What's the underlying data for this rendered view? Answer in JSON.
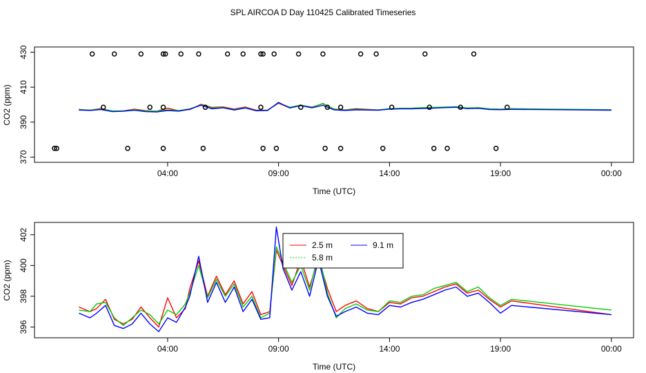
{
  "figure": {
    "title": "SPL AIRCOA D  Day 110425  Calibrated Timeseries"
  },
  "chart_data": [
    {
      "type": "line",
      "panel": "top",
      "xlabel": "Time (UTC)",
      "ylabel": "CO2 (ppm)",
      "xlim": [
        -2.0,
        25.0
      ],
      "ylim": [
        367.0,
        433.0
      ],
      "x_ticks": [
        4,
        9,
        14,
        19,
        24
      ],
      "x_tick_labels": [
        "04:00",
        "09:00",
        "14:00",
        "19:00",
        "00:00"
      ],
      "y_ticks": [
        370,
        390,
        410,
        430
      ],
      "y_tick_labels": [
        "370",
        "390",
        "410",
        "430"
      ],
      "series": [
        {
          "name": "2.5 m",
          "color": "#ff0000",
          "x": [
            0.0,
            0.5,
            1.0,
            1.5,
            2.0,
            2.5,
            3.0,
            3.5,
            4.0,
            4.5,
            5.0,
            5.5,
            6.0,
            6.5,
            7.0,
            7.5,
            8.0,
            8.5,
            9.0,
            9.5,
            10.0,
            10.5,
            11.0,
            11.5,
            12.0,
            12.5,
            13.0,
            13.5,
            14.0,
            14.5,
            15.0,
            15.5,
            16.0,
            16.5,
            17.0,
            17.5,
            18.0,
            18.5,
            19.0,
            19.5,
            24.0
          ],
          "y": [
            397.3,
            396.8,
            397.8,
            396.3,
            396.5,
            397.4,
            396.6,
            396.2,
            398.0,
            396.5,
            397.2,
            400.2,
            398.4,
            398.7,
            397.5,
            398.6,
            396.8,
            396.9,
            400.8,
            398.2,
            399.6,
            398.6,
            400.5,
            397.5,
            397.0,
            397.7,
            397.3,
            397.0,
            397.6,
            397.9,
            397.9,
            398.2,
            398.2,
            398.5,
            398.7,
            398.0,
            398.2,
            397.6,
            397.4,
            397.6,
            396.9
          ]
        },
        {
          "name": "5.8 m",
          "color": "#00cc00",
          "x": [
            0.0,
            0.5,
            1.0,
            1.5,
            2.0,
            2.5,
            3.0,
            3.5,
            4.0,
            4.5,
            5.0,
            5.5,
            6.0,
            6.5,
            7.0,
            7.5,
            8.0,
            8.5,
            9.0,
            9.5,
            10.0,
            10.5,
            11.0,
            11.5,
            12.0,
            12.5,
            13.0,
            13.5,
            14.0,
            14.5,
            15.0,
            15.5,
            16.0,
            16.5,
            17.0,
            17.5,
            18.0,
            18.5,
            19.0,
            19.5,
            24.0
          ],
          "y": [
            397.2,
            396.9,
            397.5,
            396.5,
            396.4,
            397.1,
            396.4,
            396.3,
            397.0,
            396.6,
            397.6,
            399.9,
            398.1,
            398.4,
            397.2,
            398.3,
            396.6,
            396.8,
            401.0,
            398.5,
            399.8,
            398.4,
            400.7,
            397.4,
            396.9,
            397.4,
            397.1,
            397.0,
            397.7,
            397.9,
            398.0,
            398.3,
            398.4,
            398.6,
            398.8,
            398.1,
            398.3,
            397.6,
            397.4,
            397.7,
            397.1
          ]
        },
        {
          "name": "9.1 m",
          "color": "#0000ff",
          "x": [
            0.0,
            0.5,
            1.0,
            1.5,
            2.0,
            2.5,
            3.0,
            3.5,
            4.0,
            4.5,
            5.0,
            5.5,
            6.0,
            6.5,
            7.0,
            7.5,
            8.0,
            8.5,
            9.0,
            9.5,
            10.0,
            10.5,
            11.0,
            11.5,
            12.0,
            12.5,
            13.0,
            13.5,
            14.0,
            14.5,
            15.0,
            15.5,
            16.0,
            16.5,
            17.0,
            17.5,
            18.0,
            18.5,
            19.0,
            19.5,
            24.0
          ],
          "y": [
            396.9,
            396.7,
            397.2,
            396.0,
            396.2,
            396.8,
            396.0,
            395.8,
            396.6,
            396.3,
            397.4,
            399.7,
            397.6,
            398.2,
            396.9,
            398.1,
            396.5,
            396.6,
            401.3,
            398.1,
            399.4,
            398.2,
            399.6,
            397.0,
            396.7,
            397.0,
            396.9,
            396.8,
            397.4,
            397.6,
            397.6,
            397.8,
            398.0,
            398.3,
            398.5,
            397.7,
            397.9,
            397.2,
            397.1,
            397.3,
            396.8
          ]
        }
      ],
      "points": {
        "x": [
          -1.0,
          0.6,
          1.6,
          2.8,
          3.8,
          3.9,
          4.6,
          5.4,
          6.7,
          7.4,
          8.2,
          8.3,
          8.8,
          9.9,
          11.0,
          12.7,
          13.4,
          15.6,
          17.8,
          1.1,
          3.2,
          3.8,
          5.7,
          8.2,
          10.0,
          11.2,
          11.8,
          14.1,
          15.8,
          17.2,
          19.3,
          -1.1,
          2.2,
          3.8,
          5.6,
          8.3,
          8.9,
          11.1,
          11.8,
          13.7,
          16.0,
          16.6,
          18.8
        ],
        "y": [
          375.0,
          429.0,
          429.0,
          429.0,
          429.0,
          429.0,
          429.0,
          429.0,
          429.0,
          429.0,
          429.0,
          429.0,
          429.0,
          429.0,
          429.0,
          429.0,
          429.0,
          429.0,
          429.0,
          398.5,
          398.5,
          398.5,
          398.5,
          398.5,
          398.5,
          398.5,
          398.5,
          398.5,
          398.5,
          398.5,
          398.5,
          375.0,
          375.0,
          375.0,
          375.0,
          375.0,
          375.0,
          375.0,
          375.0,
          375.0,
          375.0,
          375.0,
          375.0
        ]
      }
    },
    {
      "type": "line",
      "panel": "bottom",
      "xlabel": "Time (UTC)",
      "ylabel": "CO2 (ppm)",
      "xlim": [
        -2.0,
        25.0
      ],
      "ylim": [
        395.3,
        402.8
      ],
      "x_ticks": [
        4,
        9,
        14,
        19,
        24
      ],
      "x_tick_labels": [
        "04:00",
        "09:00",
        "14:00",
        "19:00",
        "00:00"
      ],
      "y_ticks": [
        396,
        398,
        400,
        402
      ],
      "y_tick_labels": [
        "396",
        "398",
        "400",
        "402"
      ],
      "legend": {
        "placement": "top-center",
        "entries": [
          "2.5 m",
          "9.1 m",
          "5.8 m"
        ]
      },
      "series": [
        {
          "name": "2.5 m",
          "color": "#ff0000",
          "x": [
            0.0,
            0.5,
            0.8,
            1.2,
            1.6,
            2.0,
            2.4,
            2.8,
            3.2,
            3.6,
            4.0,
            4.4,
            4.8,
            5.0,
            5.4,
            5.8,
            6.2,
            6.6,
            7.0,
            7.4,
            7.8,
            8.2,
            8.6,
            8.9,
            9.2,
            9.6,
            10.0,
            10.4,
            10.8,
            11.2,
            11.6,
            12.0,
            12.5,
            13.0,
            13.5,
            14.0,
            14.5,
            15.0,
            15.5,
            16.0,
            16.5,
            17.0,
            17.5,
            18.0,
            18.5,
            19.0,
            19.5,
            24.0
          ],
          "y": [
            397.3,
            397.0,
            397.2,
            397.8,
            396.5,
            396.2,
            396.5,
            397.3,
            396.6,
            396.0,
            397.9,
            396.6,
            397.2,
            398.5,
            400.3,
            398.0,
            399.3,
            398.1,
            399.0,
            397.5,
            398.3,
            396.8,
            397.0,
            401.0,
            400.0,
            398.7,
            400.4,
            398.6,
            400.5,
            398.5,
            397.0,
            397.4,
            397.7,
            397.2,
            397.0,
            397.6,
            397.5,
            397.9,
            398.0,
            398.3,
            398.6,
            398.8,
            398.2,
            398.4,
            397.8,
            397.3,
            397.7,
            396.8
          ]
        },
        {
          "name": "5.8 m",
          "color": "#00cc00",
          "x": [
            0.0,
            0.5,
            0.8,
            1.2,
            1.6,
            2.0,
            2.4,
            2.8,
            3.2,
            3.6,
            4.0,
            4.4,
            4.8,
            5.0,
            5.4,
            5.8,
            6.2,
            6.6,
            7.0,
            7.4,
            7.8,
            8.2,
            8.6,
            8.9,
            9.2,
            9.6,
            10.0,
            10.4,
            10.8,
            11.2,
            11.6,
            12.0,
            12.5,
            13.0,
            13.5,
            14.0,
            14.5,
            15.0,
            15.5,
            16.0,
            16.5,
            17.0,
            17.5,
            18.0,
            18.5,
            19.0,
            19.5,
            24.0
          ],
          "y": [
            397.1,
            397.0,
            397.5,
            397.6,
            396.6,
            396.1,
            396.6,
            397.1,
            396.8,
            396.2,
            397.1,
            396.8,
            397.5,
            398.2,
            400.0,
            397.9,
            399.1,
            398.0,
            398.8,
            397.3,
            398.0,
            396.6,
            396.9,
            401.2,
            400.2,
            398.9,
            400.0,
            398.4,
            400.8,
            398.2,
            396.6,
            397.2,
            397.5,
            397.1,
            397.0,
            397.7,
            397.6,
            398.0,
            398.1,
            398.5,
            398.7,
            398.9,
            398.3,
            398.6,
            397.9,
            397.4,
            397.8,
            397.1
          ]
        },
        {
          "name": "9.1 m",
          "color": "#0000ff",
          "x": [
            0.0,
            0.5,
            0.8,
            1.2,
            1.6,
            2.0,
            2.4,
            2.8,
            3.2,
            3.6,
            4.0,
            4.4,
            4.8,
            5.0,
            5.4,
            5.8,
            6.2,
            6.6,
            7.0,
            7.4,
            7.8,
            8.2,
            8.6,
            8.9,
            9.2,
            9.6,
            10.0,
            10.4,
            10.8,
            11.2,
            11.6,
            12.0,
            12.5,
            13.0,
            13.5,
            14.0,
            14.5,
            15.0,
            15.5,
            16.0,
            16.5,
            17.0,
            17.5,
            18.0,
            18.5,
            19.0,
            19.5,
            24.0
          ],
          "y": [
            396.9,
            396.6,
            396.9,
            397.4,
            396.1,
            395.9,
            396.2,
            396.9,
            396.2,
            395.7,
            396.6,
            396.3,
            397.3,
            398.0,
            400.6,
            397.6,
            398.9,
            397.6,
            398.6,
            397.0,
            397.8,
            396.5,
            396.6,
            402.5,
            399.8,
            398.4,
            399.6,
            398.0,
            400.4,
            398.0,
            396.7,
            397.0,
            397.3,
            396.9,
            396.8,
            397.4,
            397.3,
            397.6,
            397.8,
            398.1,
            398.4,
            398.6,
            398.0,
            398.2,
            397.6,
            396.9,
            397.4,
            396.8
          ]
        }
      ]
    }
  ]
}
